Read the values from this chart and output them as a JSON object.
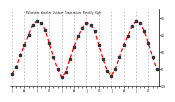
{
  "title": "Milwaukee Weather Outdoor Temperature Monthly High",
  "values_yr1": [
    -3,
    1,
    8,
    14,
    20,
    26,
    28,
    27,
    23,
    15,
    7,
    0
  ],
  "values_yr2": [
    -5,
    -2,
    6,
    13,
    19,
    24,
    27,
    26,
    22,
    14,
    6,
    -1
  ],
  "values_yr3": [
    -4,
    0,
    7,
    14,
    19,
    25,
    28,
    27,
    22,
    15,
    7,
    0
  ],
  "ylim": [
    -10,
    35
  ],
  "yticks": [
    -10,
    0,
    10,
    20,
    30
  ],
  "ytick_labels": [
    "-10",
    "0",
    "10",
    "20",
    "30"
  ],
  "line_color": "#ff0000",
  "marker_color": "#333333",
  "background_color": "#ffffff",
  "grid_color": "#999999"
}
